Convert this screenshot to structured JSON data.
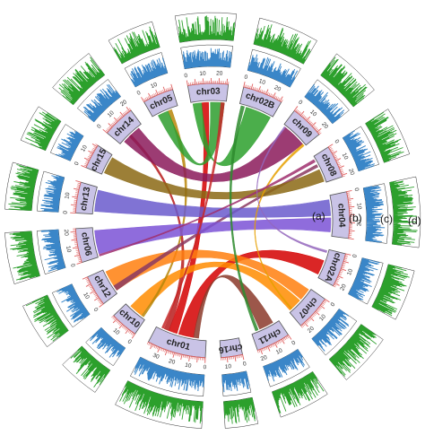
{
  "diagram": {
    "type": "circos",
    "chromosomes": [
      {
        "name": "chr01",
        "size": 38,
        "label_ticks": [
          "0",
          "10",
          "20",
          "30"
        ]
      },
      {
        "name": "chr10",
        "size": 18,
        "label_ticks": [
          "0",
          "10"
        ]
      },
      {
        "name": "chr12",
        "size": 20,
        "label_ticks": [
          "0",
          "10"
        ]
      },
      {
        "name": "chr06",
        "size": 22,
        "label_ticks": [
          "0",
          "10",
          "20"
        ]
      },
      {
        "name": "chr13",
        "size": 20,
        "label_ticks": [
          "0",
          "10"
        ]
      },
      {
        "name": "chr15",
        "size": 16,
        "label_ticks": [
          "0",
          "10"
        ]
      },
      {
        "name": "chr14",
        "size": 21,
        "label_ticks": [
          "0",
          "10",
          "20"
        ]
      },
      {
        "name": "chr05",
        "size": 20,
        "label_ticks": [
          "0",
          "10"
        ]
      },
      {
        "name": "chr03",
        "size": 26,
        "label_ticks": [
          "0",
          "10",
          "20"
        ]
      },
      {
        "name": "chr02B",
        "size": 26,
        "label_ticks": [
          "0",
          "10",
          "20"
        ]
      },
      {
        "name": "chr09",
        "size": 22,
        "label_ticks": [
          "0",
          "10",
          "20"
        ]
      },
      {
        "name": "chr08",
        "size": 21,
        "label_ticks": [
          "0",
          "10",
          "20"
        ]
      },
      {
        "name": "chr04",
        "size": 30,
        "label_ticks": [
          "0",
          "10",
          "20"
        ]
      },
      {
        "name": "chr02A",
        "size": 22,
        "label_ticks": [
          "0",
          "10",
          "20"
        ]
      },
      {
        "name": "chr07",
        "size": 23,
        "label_ticks": [
          "0",
          "10",
          "20"
        ]
      },
      {
        "name": "chr11",
        "size": 22,
        "label_ticks": [
          "0",
          "10",
          "20"
        ]
      },
      {
        "name": "chr16",
        "size": 14,
        "label_ticks": [
          "0",
          "10"
        ]
      }
    ],
    "track_labels": [
      "(a)",
      "(b)",
      "(c)",
      "(d)"
    ],
    "links": [
      {
        "from": "chr01",
        "f": [
          0.25,
          0.55
        ],
        "to": "chr02A",
        "t": [
          0.4,
          0.9
        ],
        "color": "#d40000"
      },
      {
        "from": "chr01",
        "f": [
          0.58,
          0.75
        ],
        "to": "chr03",
        "t": [
          0.3,
          0.5
        ],
        "color": "#d40000"
      },
      {
        "from": "chr01",
        "f": [
          0.15,
          0.25
        ],
        "to": "chr11",
        "t": [
          0.2,
          0.7
        ],
        "color": "#8b3a2a"
      },
      {
        "from": "chr01",
        "f": [
          0.75,
          0.85
        ],
        "to": "chr14",
        "t": [
          0.4,
          0.5
        ],
        "color": "#b71c1c"
      },
      {
        "from": "chr10",
        "f": [
          0.2,
          0.8
        ],
        "to": "chr07",
        "t": [
          0.5,
          0.95
        ],
        "color": "#ff8c00"
      },
      {
        "from": "chr10",
        "f": [
          0.1,
          0.2
        ],
        "to": "chr05",
        "t": [
          0.6,
          0.75
        ],
        "color": "#b8860b"
      },
      {
        "from": "chr12",
        "f": [
          0.1,
          0.9
        ],
        "to": "chr07",
        "t": [
          0.05,
          0.45
        ],
        "color": "#ff7f0e"
      },
      {
        "from": "chr12",
        "f": [
          0.1,
          0.3
        ],
        "to": "chr08",
        "t": [
          0.3,
          0.4
        ],
        "color": "#8b3a62"
      },
      {
        "from": "chr06",
        "f": [
          0.1,
          0.9
        ],
        "to": "chr04",
        "t": [
          0.55,
          0.9
        ],
        "color": "#7b52d6"
      },
      {
        "from": "chr13",
        "f": [
          0.1,
          0.9
        ],
        "to": "chr04",
        "t": [
          0.1,
          0.5
        ],
        "color": "#6a5acd"
      },
      {
        "from": "chr15",
        "f": [
          0.1,
          0.9
        ],
        "to": "chr08",
        "t": [
          0.5,
          0.95
        ],
        "color": "#8b6914"
      },
      {
        "from": "chr14",
        "f": [
          0.15,
          0.85
        ],
        "to": "chr09",
        "t": [
          0.1,
          0.9
        ],
        "color": "#8b1a5a"
      },
      {
        "from": "chr05",
        "f": [
          0.2,
          0.6
        ],
        "to": "chr03",
        "t": [
          0.55,
          0.95
        ],
        "color": "#2e9e2e"
      },
      {
        "from": "chr03",
        "f": [
          0.05,
          0.3
        ],
        "to": "chr02B",
        "t": [
          0.2,
          0.95
        ],
        "color": "#2ca02c"
      },
      {
        "from": "chr02B",
        "f": [
          0.05,
          0.15
        ],
        "to": "chr11",
        "t": [
          0.75,
          0.85
        ],
        "color": "#2e8b2e"
      },
      {
        "from": "chr09",
        "f": [
          0.9,
          0.98
        ],
        "to": "chr07",
        "t": [
          0.85,
          0.9
        ],
        "color": "#e6a000"
      },
      {
        "from": "chr06",
        "f": [
          0.02,
          0.08
        ],
        "to": "chr08",
        "t": [
          0.1,
          0.2
        ],
        "color": "#a0306e"
      },
      {
        "from": "chr03",
        "f": [
          0.85,
          0.95
        ],
        "to": "chr01",
        "t": [
          0.86,
          0.9
        ],
        "color": "#c62828"
      },
      {
        "from": "chr02A",
        "f": [
          0.05,
          0.12
        ],
        "to": "chr09",
        "t": [
          0.05,
          0.1
        ],
        "color": "#9467bd"
      }
    ],
    "colors": {
      "ideogram": "#c9c3e6",
      "ideogram_stroke": "#555555",
      "tick": "#e06060",
      "hist_blue": "#3a86c8",
      "hist_green": "#2ca02c"
    }
  }
}
